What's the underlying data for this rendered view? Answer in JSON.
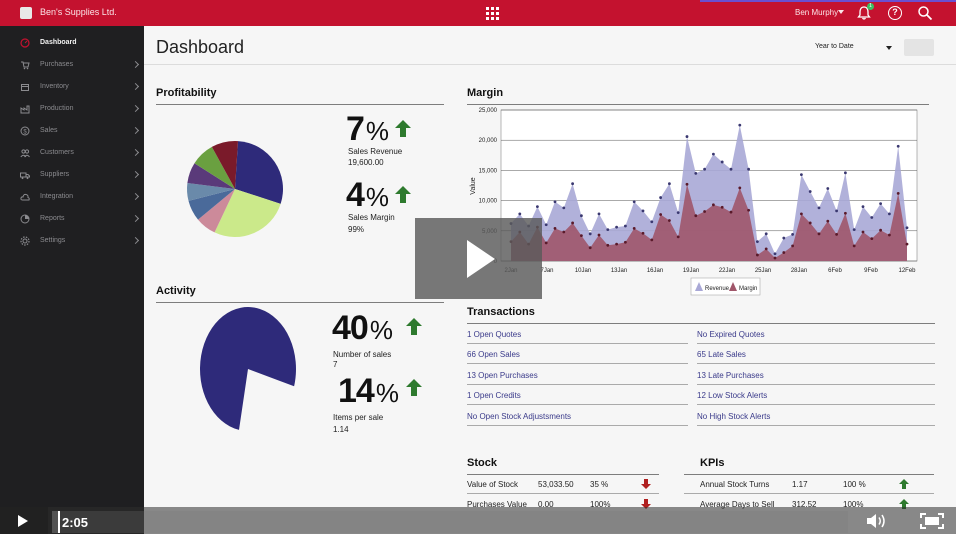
{
  "topbar": {
    "company": "Ben's Supplies Ltd.",
    "user": "Ben Murphy",
    "notification_count": "1",
    "help": "?"
  },
  "sidebar": {
    "items": [
      {
        "label": "Dashboard",
        "icon": "gauge-icon",
        "active": true
      },
      {
        "label": "Purchases",
        "icon": "cart-icon"
      },
      {
        "label": "Inventory",
        "icon": "box-icon"
      },
      {
        "label": "Production",
        "icon": "factory-icon"
      },
      {
        "label": "Sales",
        "icon": "dollar-icon"
      },
      {
        "label": "Customers",
        "icon": "people-icon"
      },
      {
        "label": "Suppliers",
        "icon": "truck-icon"
      },
      {
        "label": "Integration",
        "icon": "cloud-icon"
      },
      {
        "label": "Reports",
        "icon": "pie-icon"
      },
      {
        "label": "Settings",
        "icon": "gear-icon"
      }
    ]
  },
  "header": {
    "title": "Dashboard",
    "period": "Year to Date"
  },
  "profitability": {
    "title": "Profitability",
    "sales_revenue_pct": "7",
    "sales_revenue_label": "Sales Revenue",
    "sales_revenue_value": "19,600.00",
    "sales_margin_pct": "4",
    "sales_margin_label": "Sales Margin",
    "sales_margin_value": "99%",
    "pct_sign": "%",
    "pie_colors": [
      "#2e2a7a",
      "#cbe98a",
      "#cc8a9a",
      "#4a6a9a",
      "#6a8aaa",
      "#5a3a7a",
      "#6aa040",
      "#7a1a2a"
    ]
  },
  "activity": {
    "title": "Activity",
    "number_of_sales_pct": "40",
    "number_of_sales_label": "Number of sales",
    "number_of_sales_value": "7",
    "items_per_sale_pct": "14",
    "items_per_sale_label": "Items per sale",
    "items_per_sale_value": "1.14",
    "pct_sign": "%",
    "pie_color": "#2e2a7a"
  },
  "margin": {
    "title": "Margin",
    "legend_revenue": "Revenue",
    "legend_margin": "Margin"
  },
  "chart_data": {
    "type": "area",
    "title": "Margin",
    "xlabel": "",
    "ylabel": "Value",
    "ylim": [
      0,
      25000
    ],
    "y_ticks": [
      "25,000",
      "20,000",
      "15,000",
      "10,000",
      "5,000",
      "0"
    ],
    "x_ticks": [
      "2Jan",
      "7Jan",
      "10Jan",
      "13Jan",
      "16Jan",
      "19Jan",
      "22Jan",
      "25Jan",
      "28Jan",
      "6Feb",
      "9Feb",
      "12Feb"
    ],
    "legend": "bottom",
    "grid": true,
    "series": [
      {
        "name": "Revenue",
        "color": "#a9a8d6",
        "values": [
          6200,
          7800,
          5800,
          9000,
          6000,
          9800,
          8800,
          12800,
          7500,
          4500,
          7800,
          5200,
          5600,
          5800,
          9800,
          8300,
          6500,
          10500,
          12800,
          8000,
          20600,
          14500,
          15200,
          17700,
          16400,
          15200,
          22500,
          15200,
          3200,
          4500,
          1200,
          3800,
          4400,
          14300,
          11500,
          8800,
          12000,
          8300,
          14600,
          5200,
          9000,
          7200,
          9500,
          7800,
          19000,
          5500
        ]
      },
      {
        "name": "Margin",
        "color": "#a0566a",
        "values": [
          3200,
          4800,
          2800,
          5600,
          3000,
          5400,
          4800,
          6300,
          4200,
          2200,
          4300,
          2600,
          2800,
          3100,
          5400,
          4600,
          3500,
          7700,
          6700,
          4000,
          12700,
          7500,
          8200,
          9300,
          8900,
          8100,
          12100,
          8400,
          1000,
          2000,
          500,
          1400,
          2500,
          7800,
          6300,
          4500,
          6600,
          4400,
          7900,
          2500,
          4800,
          3700,
          5100,
          4300,
          11200,
          2800
        ]
      }
    ]
  },
  "transactions": {
    "title": "Transactions",
    "left": [
      "1 Open Quotes",
      "66 Open Sales",
      "13 Open Purchases",
      "1 Open Credits",
      "No Open Stock Adjustsments"
    ],
    "right": [
      "No Expired Quotes",
      "65 Late Sales",
      "13 Late Purchases",
      "12 Low Stock Alerts",
      "No High Stock Alerts"
    ]
  },
  "stock": {
    "title": "Stock",
    "rows": [
      {
        "label": "Value of Stock",
        "value": "53,033.50",
        "pct": "35 %",
        "trend": "down"
      },
      {
        "label": "Purchases Value",
        "value": "0.00",
        "pct": "100%",
        "trend": "down"
      }
    ]
  },
  "kpis": {
    "title": "KPIs",
    "rows": [
      {
        "label": "Annual Stock Turns",
        "value": "1.17",
        "pct": "100 %",
        "trend": "up"
      },
      {
        "label": "Average Days to Sell",
        "value": "312.52",
        "pct": "100%",
        "trend": "up"
      }
    ]
  },
  "video": {
    "time": "2:05",
    "progress": 0.01
  },
  "colors": {
    "brand_red": "#c4122f",
    "sidebar_bg": "#1f1f21",
    "up_green": "#2e7a2e",
    "down_red": "#b02020",
    "link": "#3a3a8a"
  }
}
